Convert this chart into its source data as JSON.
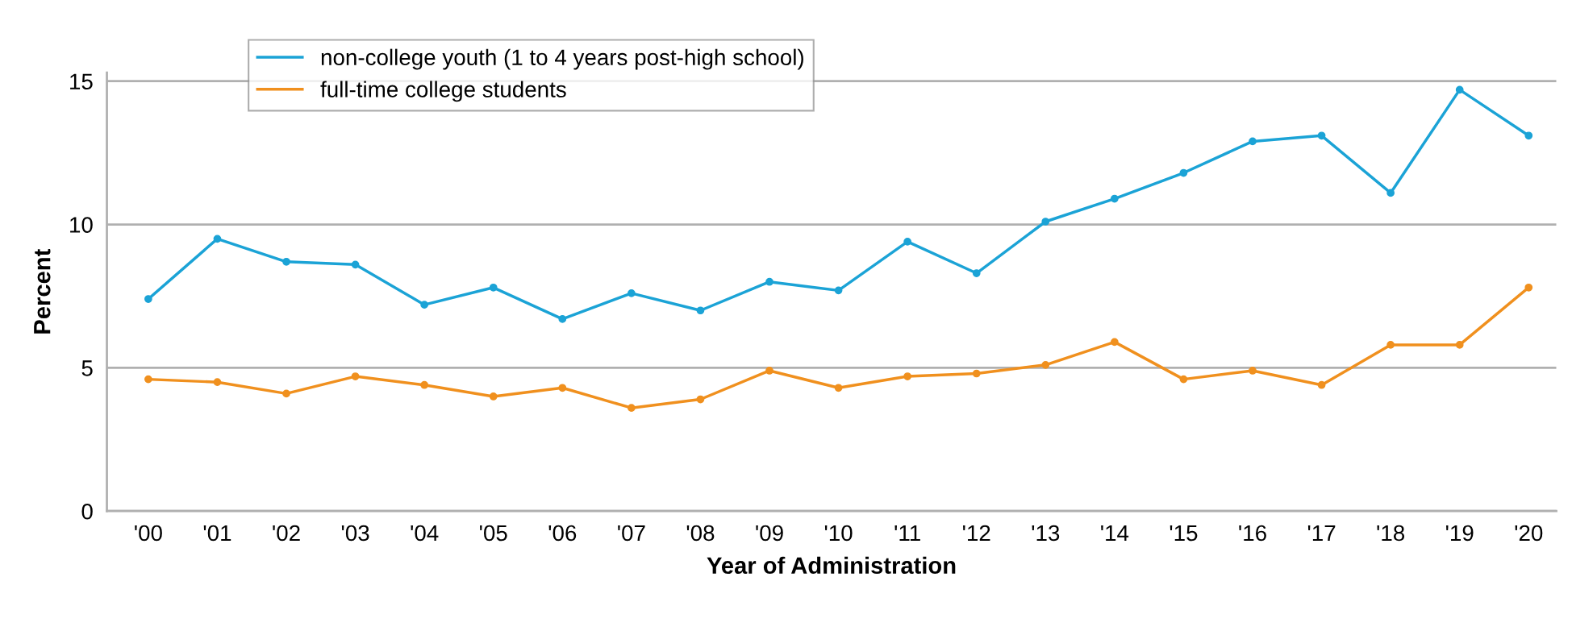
{
  "chart_data": {
    "type": "line",
    "xlabel": "Year of Administration",
    "ylabel": "Percent",
    "categories": [
      "'00",
      "'01",
      "'02",
      "'03",
      "'04",
      "'05",
      "'06",
      "'07",
      "'08",
      "'09",
      "'10",
      "'11",
      "'12",
      "'13",
      "'14",
      "'15",
      "'16",
      "'17",
      "'18",
      "'19",
      "'20"
    ],
    "series": [
      {
        "name": "non-college youth (1 to 4 years post-high school)",
        "color": "#1ba3d6",
        "values": [
          7.4,
          9.5,
          8.7,
          8.6,
          7.2,
          7.8,
          6.7,
          7.6,
          7.0,
          8.0,
          7.7,
          9.4,
          8.3,
          10.1,
          10.9,
          11.8,
          12.9,
          13.1,
          11.1,
          14.7,
          13.1
        ]
      },
      {
        "name": "full-time college students",
        "color": "#f0901e",
        "values": [
          4.6,
          4.5,
          4.1,
          4.7,
          4.4,
          4.0,
          4.3,
          3.6,
          3.9,
          4.9,
          4.3,
          4.7,
          4.8,
          5.1,
          5.9,
          4.6,
          4.9,
          4.4,
          5.8,
          5.8,
          7.8
        ]
      }
    ],
    "ylim": [
      0,
      15.3
    ],
    "yticks": [
      0,
      5,
      10,
      15
    ],
    "grid": "y",
    "legend": "top left",
    "marker": "circle",
    "line_style": "solid"
  }
}
